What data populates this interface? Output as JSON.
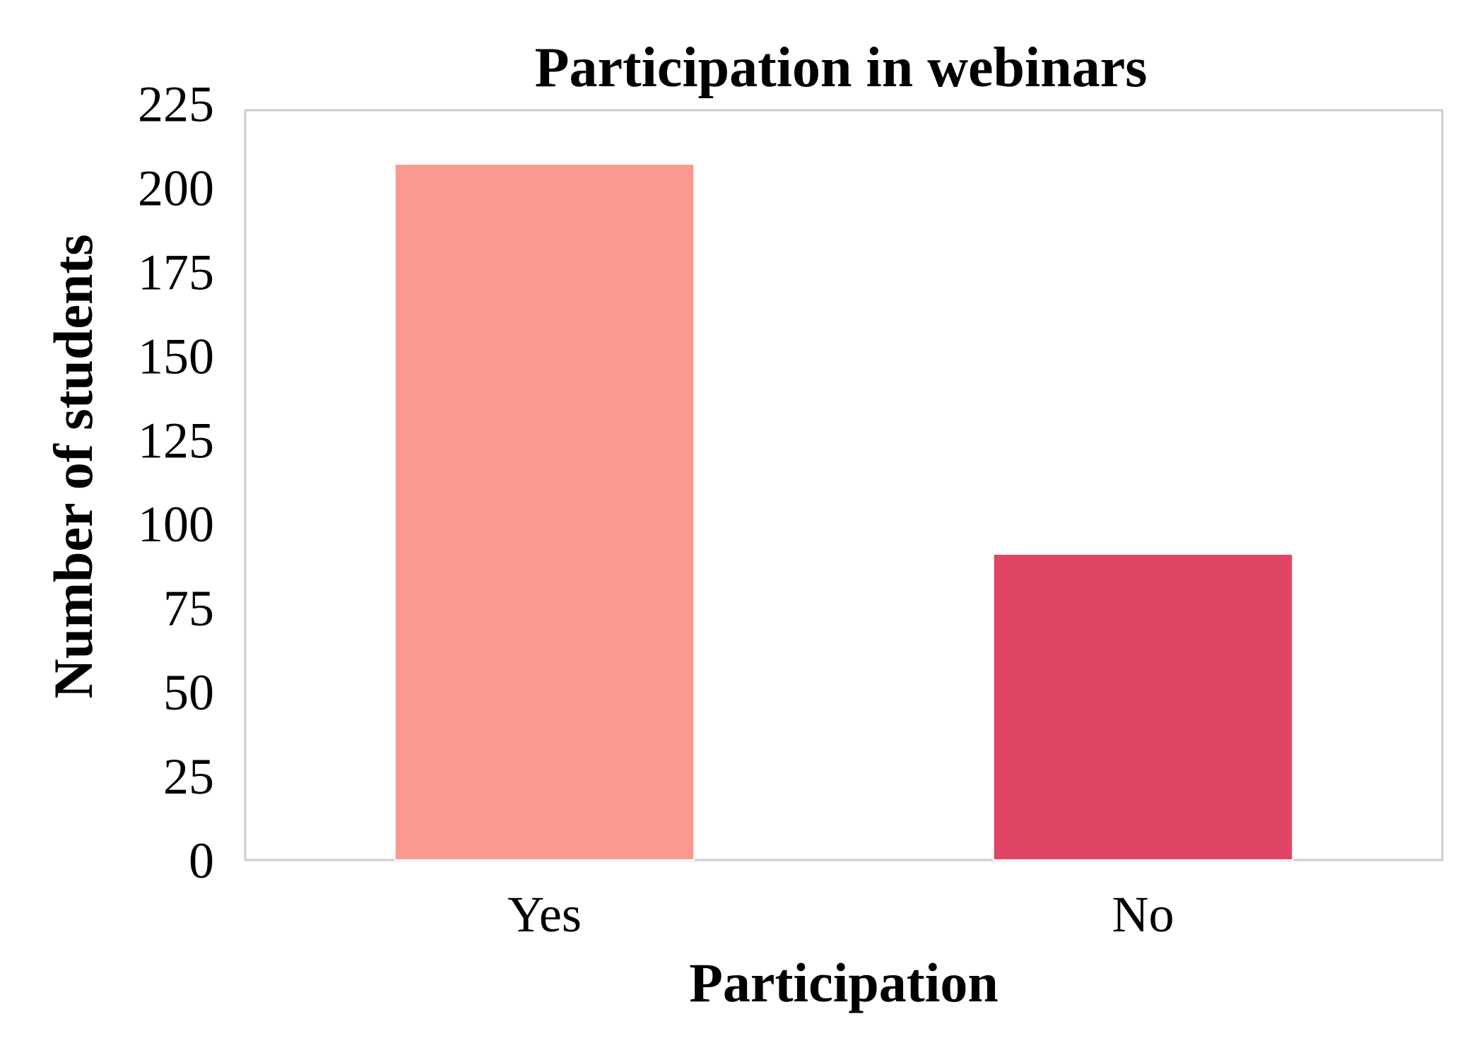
{
  "chart_data": {
    "type": "bar",
    "title": "Participation in webinars",
    "xlabel": "Participation",
    "ylabel": "Number of students",
    "categories": [
      "Yes",
      "No"
    ],
    "values": [
      207,
      91
    ],
    "colors": [
      "#FA9A8E",
      "#E04565"
    ],
    "ylim": [
      0,
      223
    ],
    "yticks": [
      "0",
      "25",
      "50",
      "75",
      "100",
      "125",
      "150",
      "175",
      "200",
      "225"
    ],
    "grid": false,
    "legend": "none"
  }
}
